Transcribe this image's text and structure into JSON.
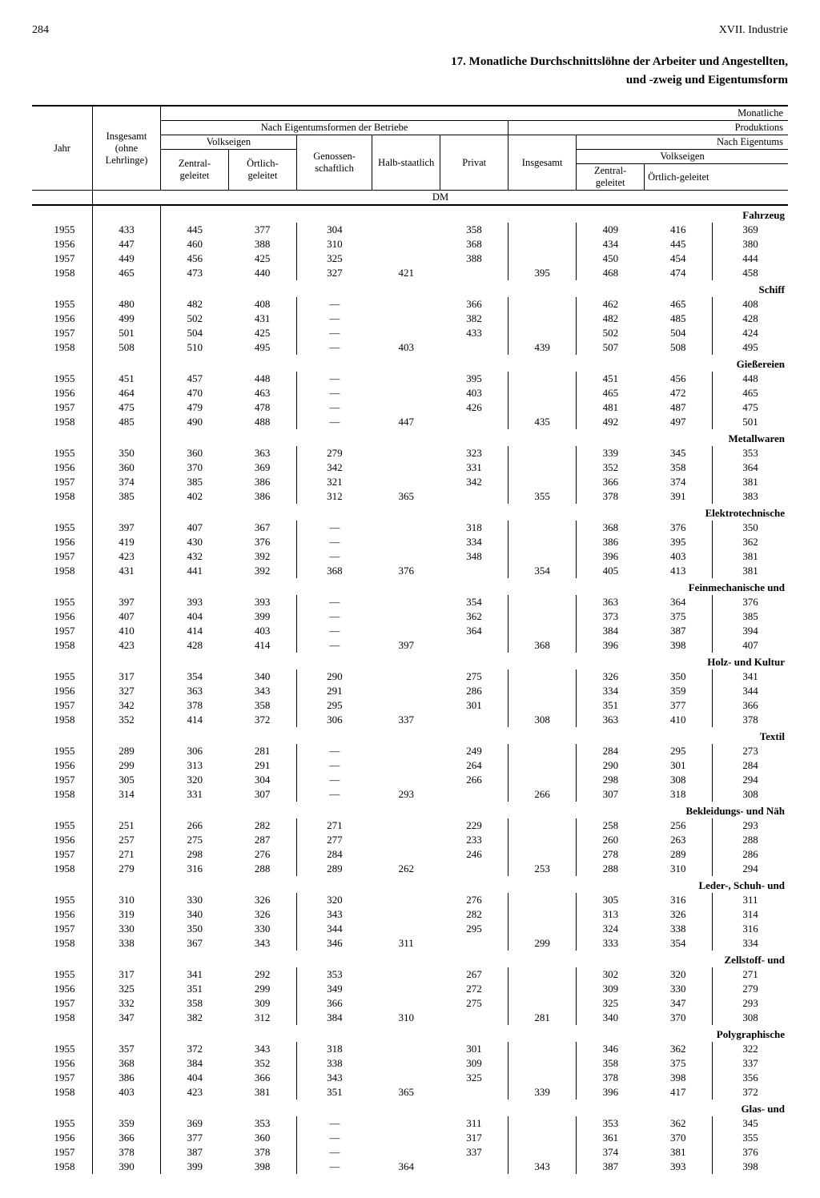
{
  "page_number": "284",
  "chapter": "XVII. Industrie",
  "title_line1": "17. Monatliche Durchschnittslöhne der Arbeiter und Angestellten,",
  "title_line2": "und -zweig und Eigentumsform",
  "headers": {
    "jahr": "Jahr",
    "insgesamt_ohne": "Insgesamt (ohne Lehrlinge)",
    "nach_eigentum": "Nach Eigentumsformen der Betriebe",
    "volkseigen": "Volkseigen",
    "zentral": "Zentral-geleitet",
    "oertlich": "Örtlich-geleitet",
    "genossen": "Genossen-schaftlich",
    "halbstaat": "Halb-staatlich",
    "privat": "Privat",
    "insgesamt": "Insgesamt",
    "monatliche": "Monatliche",
    "produktions": "Produktions",
    "nach_eig2": "Nach Eigentums",
    "dm": "DM"
  },
  "sections": [
    {
      "label": "Fahrzeug",
      "rows": [
        {
          "y": "1955",
          "c": [
            "433",
            "445",
            "377",
            "304",
            "",
            "358",
            "",
            "409",
            "416",
            "369"
          ]
        },
        {
          "y": "1956",
          "c": [
            "447",
            "460",
            "388",
            "310",
            "",
            "368",
            "",
            "434",
            "445",
            "380"
          ]
        },
        {
          "y": "1957",
          "c": [
            "449",
            "456",
            "425",
            "325",
            "",
            "388",
            "",
            "450",
            "454",
            "444"
          ]
        },
        {
          "y": "1958",
          "c": [
            "465",
            "473",
            "440",
            "327",
            "421",
            "",
            "395",
            "468",
            "474",
            "458"
          ]
        }
      ]
    },
    {
      "label": "Schiff",
      "rows": [
        {
          "y": "1955",
          "c": [
            "480",
            "482",
            "408",
            "—",
            "",
            "366",
            "",
            "462",
            "465",
            "408"
          ]
        },
        {
          "y": "1956",
          "c": [
            "499",
            "502",
            "431",
            "—",
            "",
            "382",
            "",
            "482",
            "485",
            "428"
          ]
        },
        {
          "y": "1957",
          "c": [
            "501",
            "504",
            "425",
            "—",
            "",
            "433",
            "",
            "502",
            "504",
            "424"
          ]
        },
        {
          "y": "1958",
          "c": [
            "508",
            "510",
            "495",
            "—",
            "403",
            "",
            "439",
            "507",
            "508",
            "495"
          ]
        }
      ]
    },
    {
      "label": "Gießereien",
      "rows": [
        {
          "y": "1955",
          "c": [
            "451",
            "457",
            "448",
            "—",
            "",
            "395",
            "",
            "451",
            "456",
            "448"
          ]
        },
        {
          "y": "1956",
          "c": [
            "464",
            "470",
            "463",
            "—",
            "",
            "403",
            "",
            "465",
            "472",
            "465"
          ]
        },
        {
          "y": "1957",
          "c": [
            "475",
            "479",
            "478",
            "—",
            "",
            "426",
            "",
            "481",
            "487",
            "475"
          ]
        },
        {
          "y": "1958",
          "c": [
            "485",
            "490",
            "488",
            "—",
            "447",
            "",
            "435",
            "492",
            "497",
            "501"
          ]
        }
      ]
    },
    {
      "label": "Metallwaren",
      "rows": [
        {
          "y": "1955",
          "c": [
            "350",
            "360",
            "363",
            "279",
            "",
            "323",
            "",
            "339",
            "345",
            "353"
          ]
        },
        {
          "y": "1956",
          "c": [
            "360",
            "370",
            "369",
            "342",
            "",
            "331",
            "",
            "352",
            "358",
            "364"
          ]
        },
        {
          "y": "1957",
          "c": [
            "374",
            "385",
            "386",
            "321",
            "",
            "342",
            "",
            "366",
            "374",
            "381"
          ]
        },
        {
          "y": "1958",
          "c": [
            "385",
            "402",
            "386",
            "312",
            "365",
            "",
            "355",
            "378",
            "391",
            "383"
          ]
        }
      ]
    },
    {
      "label": "Elektrotechnische",
      "rows": [
        {
          "y": "1955",
          "c": [
            "397",
            "407",
            "367",
            "—",
            "",
            "318",
            "",
            "368",
            "376",
            "350"
          ]
        },
        {
          "y": "1956",
          "c": [
            "419",
            "430",
            "376",
            "—",
            "",
            "334",
            "",
            "386",
            "395",
            "362"
          ]
        },
        {
          "y": "1957",
          "c": [
            "423",
            "432",
            "392",
            "—",
            "",
            "348",
            "",
            "396",
            "403",
            "381"
          ]
        },
        {
          "y": "1958",
          "c": [
            "431",
            "441",
            "392",
            "368",
            "376",
            "",
            "354",
            "405",
            "413",
            "381"
          ]
        }
      ]
    },
    {
      "label": "Feinmechanische und",
      "rows": [
        {
          "y": "1955",
          "c": [
            "397",
            "393",
            "393",
            "—",
            "",
            "354",
            "",
            "363",
            "364",
            "376"
          ]
        },
        {
          "y": "1956",
          "c": [
            "407",
            "404",
            "399",
            "—",
            "",
            "362",
            "",
            "373",
            "375",
            "385"
          ]
        },
        {
          "y": "1957",
          "c": [
            "410",
            "414",
            "403",
            "—",
            "",
            "364",
            "",
            "384",
            "387",
            "394"
          ]
        },
        {
          "y": "1958",
          "c": [
            "423",
            "428",
            "414",
            "—",
            "397",
            "",
            "368",
            "396",
            "398",
            "407"
          ]
        }
      ]
    },
    {
      "label": "Holz- und Kultur",
      "rows": [
        {
          "y": "1955",
          "c": [
            "317",
            "354",
            "340",
            "290",
            "",
            "275",
            "",
            "326",
            "350",
            "341"
          ]
        },
        {
          "y": "1956",
          "c": [
            "327",
            "363",
            "343",
            "291",
            "",
            "286",
            "",
            "334",
            "359",
            "344"
          ]
        },
        {
          "y": "1957",
          "c": [
            "342",
            "378",
            "358",
            "295",
            "",
            "301",
            "",
            "351",
            "377",
            "366"
          ]
        },
        {
          "y": "1958",
          "c": [
            "352",
            "414",
            "372",
            "306",
            "337",
            "",
            "308",
            "363",
            "410",
            "378"
          ]
        }
      ]
    },
    {
      "label": "Textil",
      "rows": [
        {
          "y": "1955",
          "c": [
            "289",
            "306",
            "281",
            "—",
            "",
            "249",
            "",
            "284",
            "295",
            "273"
          ]
        },
        {
          "y": "1956",
          "c": [
            "299",
            "313",
            "291",
            "—",
            "",
            "264",
            "",
            "290",
            "301",
            "284"
          ]
        },
        {
          "y": "1957",
          "c": [
            "305",
            "320",
            "304",
            "—",
            "",
            "266",
            "",
            "298",
            "308",
            "294"
          ]
        },
        {
          "y": "1958",
          "c": [
            "314",
            "331",
            "307",
            "—",
            "293",
            "",
            "266",
            "307",
            "318",
            "308"
          ]
        }
      ]
    },
    {
      "label": "Bekleidungs- und Näh",
      "rows": [
        {
          "y": "1955",
          "c": [
            "251",
            "266",
            "282",
            "271",
            "",
            "229",
            "",
            "258",
            "256",
            "293"
          ]
        },
        {
          "y": "1956",
          "c": [
            "257",
            "275",
            "287",
            "277",
            "",
            "233",
            "",
            "260",
            "263",
            "288"
          ]
        },
        {
          "y": "1957",
          "c": [
            "271",
            "298",
            "276",
            "284",
            "",
            "246",
            "",
            "278",
            "289",
            "286"
          ]
        },
        {
          "y": "1958",
          "c": [
            "279",
            "316",
            "288",
            "289",
            "262",
            "",
            "253",
            "288",
            "310",
            "294"
          ]
        }
      ]
    },
    {
      "label": "Leder-, Schuh- und",
      "rows": [
        {
          "y": "1955",
          "c": [
            "310",
            "330",
            "326",
            "320",
            "",
            "276",
            "",
            "305",
            "316",
            "311"
          ]
        },
        {
          "y": "1956",
          "c": [
            "319",
            "340",
            "326",
            "343",
            "",
            "282",
            "",
            "313",
            "326",
            "314"
          ]
        },
        {
          "y": "1957",
          "c": [
            "330",
            "350",
            "330",
            "344",
            "",
            "295",
            "",
            "324",
            "338",
            "316"
          ]
        },
        {
          "y": "1958",
          "c": [
            "338",
            "367",
            "343",
            "346",
            "311",
            "",
            "299",
            "333",
            "354",
            "334"
          ]
        }
      ]
    },
    {
      "label": "Zellstoff- und",
      "rows": [
        {
          "y": "1955",
          "c": [
            "317",
            "341",
            "292",
            "353",
            "",
            "267",
            "",
            "302",
            "320",
            "271"
          ]
        },
        {
          "y": "1956",
          "c": [
            "325",
            "351",
            "299",
            "349",
            "",
            "272",
            "",
            "309",
            "330",
            "279"
          ]
        },
        {
          "y": "1957",
          "c": [
            "332",
            "358",
            "309",
            "366",
            "",
            "275",
            "",
            "325",
            "347",
            "293"
          ]
        },
        {
          "y": "1958",
          "c": [
            "347",
            "382",
            "312",
            "384",
            "310",
            "",
            "281",
            "340",
            "370",
            "308"
          ]
        }
      ]
    },
    {
      "label": "Polygraphische",
      "rows": [
        {
          "y": "1955",
          "c": [
            "357",
            "372",
            "343",
            "318",
            "",
            "301",
            "",
            "346",
            "362",
            "322"
          ]
        },
        {
          "y": "1956",
          "c": [
            "368",
            "384",
            "352",
            "338",
            "",
            "309",
            "",
            "358",
            "375",
            "337"
          ]
        },
        {
          "y": "1957",
          "c": [
            "386",
            "404",
            "366",
            "343",
            "",
            "325",
            "",
            "378",
            "398",
            "356"
          ]
        },
        {
          "y": "1958",
          "c": [
            "403",
            "423",
            "381",
            "351",
            "365",
            "",
            "339",
            "396",
            "417",
            "372"
          ]
        }
      ]
    },
    {
      "label": "Glas- und",
      "rows": [
        {
          "y": "1955",
          "c": [
            "359",
            "369",
            "353",
            "—",
            "",
            "311",
            "",
            "353",
            "362",
            "345"
          ]
        },
        {
          "y": "1956",
          "c": [
            "366",
            "377",
            "360",
            "—",
            "",
            "317",
            "",
            "361",
            "370",
            "355"
          ]
        },
        {
          "y": "1957",
          "c": [
            "378",
            "387",
            "378",
            "—",
            "",
            "337",
            "",
            "374",
            "381",
            "376"
          ]
        },
        {
          "y": "1958",
          "c": [
            "390",
            "399",
            "398",
            "—",
            "364",
            "",
            "343",
            "387",
            "393",
            "398"
          ]
        }
      ]
    }
  ],
  "styling": {
    "font_family": "Times New Roman, serif",
    "header_fontsize": 12.5,
    "body_fontsize": 13,
    "title_fontsize": 15,
    "text_color": "#000000",
    "background_color": "#ffffff",
    "border_color": "#000000",
    "col_count": 11
  }
}
